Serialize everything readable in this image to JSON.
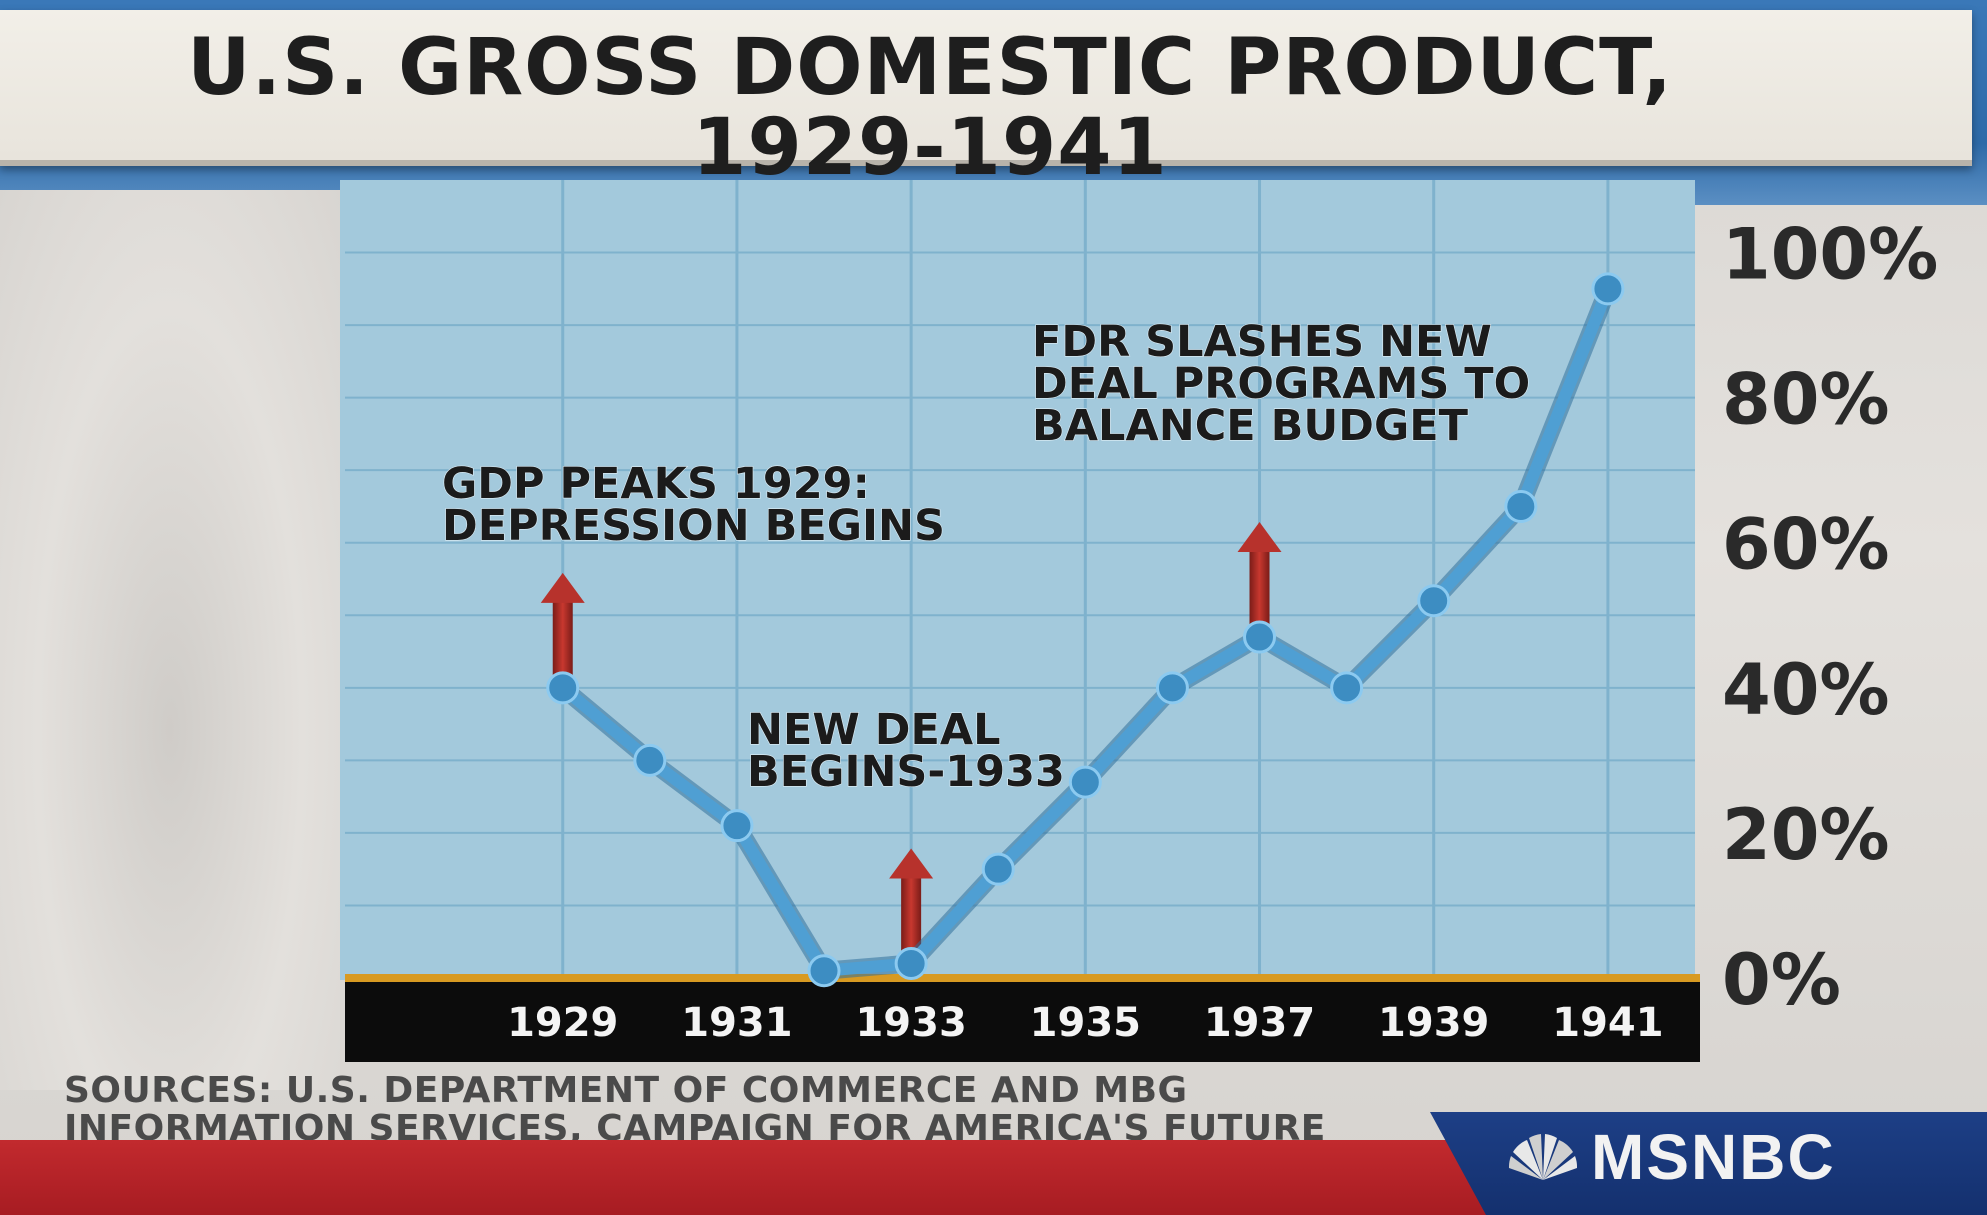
{
  "title": "U.S. GROSS DOMESTIC PRODUCT,\n1929-1941",
  "source_note": "SOURCES: U.S. DEPARTMENT OF COMMERCE AND MBG\nINFORMATION SERVICES, CAMPAIGN FOR AMERICA'S FUTURE",
  "network": {
    "name": "MSNBC",
    "icon": "peacock-icon"
  },
  "colors": {
    "plot_background": "#a3c9dc",
    "grid": "#7fb2cd",
    "line": "#4f9fd3",
    "marker": "#3d8dc2",
    "arrow": "#b7322c",
    "axis_bar": "#0c0c0c",
    "baseline": "#d89a22"
  },
  "chart_data": {
    "type": "line",
    "title": "U.S. GROSS DOMESTIC PRODUCT,\n1929-1941",
    "x": [
      1929,
      1930,
      1931,
      1932,
      1933,
      1934,
      1935,
      1936,
      1937,
      1938,
      1939,
      1940,
      1941
    ],
    "y": [
      40,
      30,
      21,
      1,
      2,
      15,
      27,
      40,
      47,
      40,
      52,
      65,
      95
    ],
    "xticks": [
      "1929",
      "1931",
      "1933",
      "1935",
      "1937",
      "1939",
      "1941"
    ],
    "xtick_values": [
      1929,
      1931,
      1933,
      1935,
      1937,
      1939,
      1941
    ],
    "yticks": [
      "0%",
      "20%",
      "40%",
      "60%",
      "80%",
      "100%"
    ],
    "ytick_values": [
      0,
      20,
      40,
      60,
      80,
      100
    ],
    "xlim": [
      1926.5,
      1942
    ],
    "ylim": [
      0,
      110
    ],
    "xlabel": "",
    "ylabel": "",
    "grid": true,
    "annotations": [
      {
        "text": "GDP PEAKS 1929:\nDEPRESSION BEGINS",
        "x": 1929,
        "y": 40
      },
      {
        "text": "NEW DEAL\nBEGINS-1933",
        "x": 1933,
        "y": 2
      },
      {
        "text": "FDR SLASHES NEW\nDEAL PROGRAMS TO\nBALANCE BUDGET",
        "x": 1937,
        "y": 47
      }
    ]
  }
}
